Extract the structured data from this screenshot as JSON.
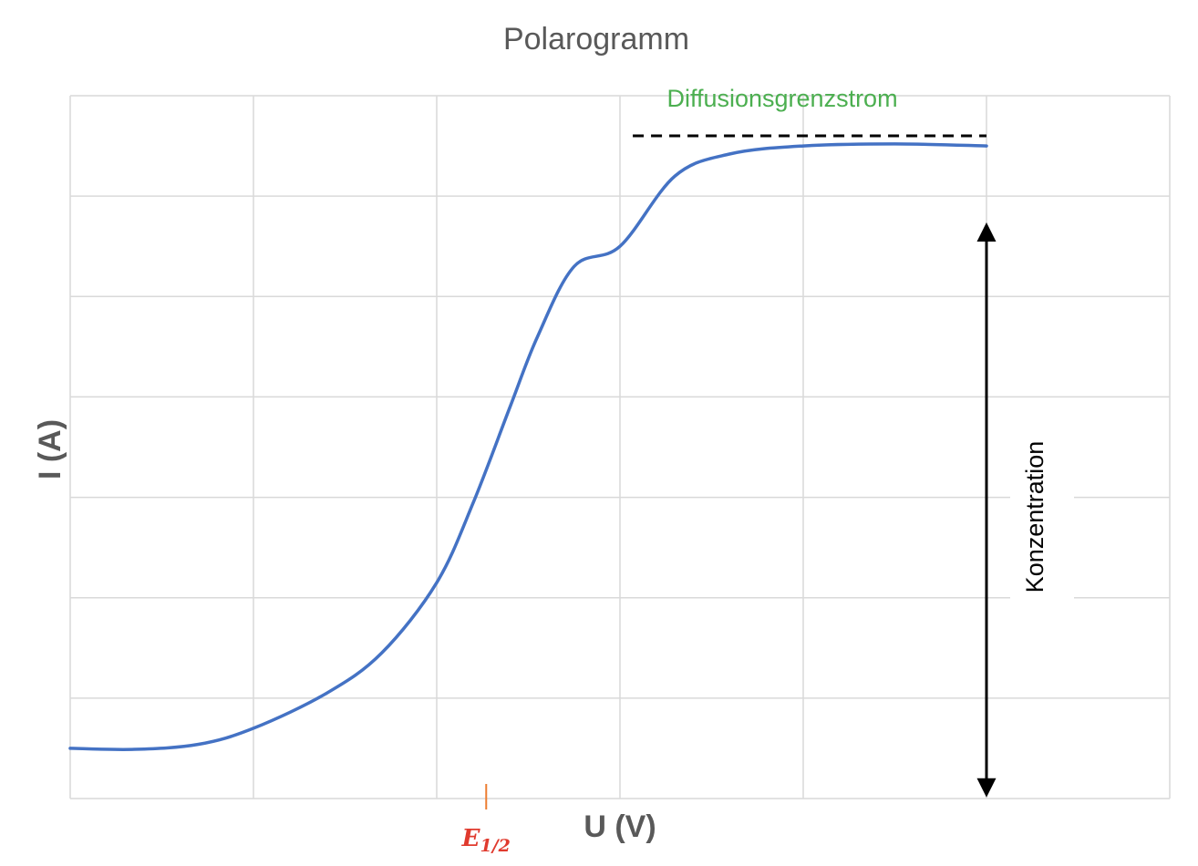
{
  "chart_data": {
    "type": "line",
    "title": "Polarogramm",
    "xlabel": "U (V)",
    "ylabel": "I (A)",
    "x_ticks_shown": false,
    "y_ticks_shown": false,
    "grid": true,
    "xlim": [
      0,
      6
    ],
    "ylim": [
      0,
      7
    ],
    "series": [
      {
        "color": "#4472c4",
        "points": [
          [
            0,
            0.5
          ],
          [
            0.35,
            0.49
          ],
          [
            0.7,
            0.54
          ],
          [
            1.0,
            0.7
          ],
          [
            1.4,
            1.05
          ],
          [
            1.7,
            1.45
          ],
          [
            2.0,
            2.15
          ],
          [
            2.2,
            2.95
          ],
          [
            2.4,
            3.9
          ],
          [
            2.55,
            4.6
          ],
          [
            2.75,
            5.3
          ],
          [
            3.0,
            5.5
          ],
          [
            3.3,
            6.2
          ],
          [
            3.6,
            6.42
          ],
          [
            4.0,
            6.5
          ],
          [
            4.5,
            6.52
          ],
          [
            5.0,
            6.5
          ]
        ]
      }
    ],
    "annotations": {
      "plateau_label": "Diffusionsgrenzstrom",
      "plateau_level": 6.6,
      "plateau_x_range": [
        3.07,
        5.0
      ],
      "arrow_label": "Konzentration",
      "arrow_x": 5.0,
      "arrow_y_range": [
        0.05,
        5.7
      ],
      "e_half_label": "E",
      "e_half_subscript": "1/2",
      "e_half_x": 2.27,
      "colors": {
        "plateau_label": "#4caf50",
        "plateau_line": "#000000",
        "arrow": "#000000",
        "e_half_text": "#e03a2e",
        "e_half_tick": "#ed7d31"
      }
    }
  }
}
